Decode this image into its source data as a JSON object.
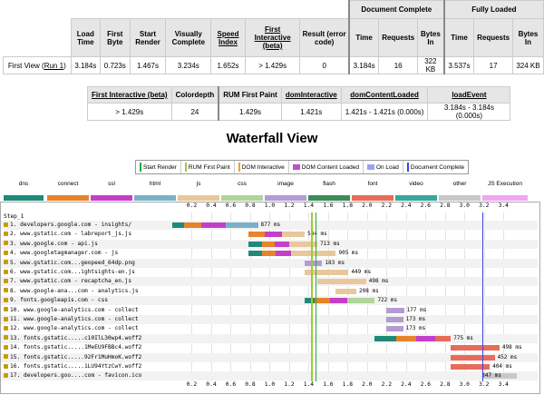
{
  "summary_table": {
    "group_headers": {
      "document_complete": "Document Complete",
      "fully_loaded": "Fully Loaded"
    },
    "headers": [
      "Load Time",
      "First Byte",
      "Start Render",
      "Visually Complete",
      "Speed Index",
      "First Interactive (beta)",
      "Result (error code)",
      "Time",
      "Requests",
      "Bytes In",
      "Time",
      "Requests",
      "Bytes In"
    ],
    "row_label": "First View (",
    "row_link": "Run 1",
    "row_label_end": ")",
    "values": [
      "3.184s",
      "0.723s",
      "1.467s",
      "3.234s",
      "1.652s",
      "> 1.429s",
      "0",
      "3.184s",
      "16",
      "322 KB",
      "3.537s",
      "17",
      "324 KB"
    ]
  },
  "metrics_table": {
    "headers": [
      "First Interactive (beta)",
      "Colordepth",
      "RUM First Paint",
      "domInteractive",
      "domContentLoaded",
      "loadEvent"
    ],
    "values": [
      "> 1.429s",
      "24",
      "1.429s",
      "1.421s",
      "1.421s - 1.421s (0.000s)",
      "3.184s - 3.184s (0.000s)"
    ]
  },
  "waterfall_title": "Waterfall View",
  "legend_lines": [
    {
      "label": "Start Render",
      "color": "#28a745"
    },
    {
      "label": "RUM First Paint",
      "color": "#9acd32"
    },
    {
      "label": "DOM Interactive",
      "color": "#f0a030"
    },
    {
      "label": "DOM Content Loaded",
      "color": "#c050d0"
    },
    {
      "label": "On Load",
      "color": "#a0a0f0"
    },
    {
      "label": "Document Complete",
      "color": "#4040e0"
    }
  ],
  "legend_types": [
    {
      "label": "dns",
      "color": "#1f8a7a"
    },
    {
      "label": "connect",
      "color": "#e8832a"
    },
    {
      "label": "ssl",
      "color": "#c43fc9"
    },
    {
      "label": "html",
      "color": "#7ab1c7"
    },
    {
      "label": "js",
      "color": "#e8c79a"
    },
    {
      "label": "css",
      "color": "#b0d49b"
    },
    {
      "label": "image",
      "color": "#b49bd4"
    },
    {
      "label": "flash",
      "color": "#3c8c5a"
    },
    {
      "label": "font",
      "color": "#e86b5a"
    },
    {
      "label": "video",
      "color": "#3aa79a"
    },
    {
      "label": "other",
      "color": "#c8c8c8"
    },
    {
      "label": "JS Execution",
      "color": "#f2a6f0"
    }
  ],
  "axis_ticks": [
    "0.2",
    "0.4",
    "0.6",
    "0.8",
    "1.0",
    "1.2",
    "1.4",
    "1.6",
    "1.8",
    "2.0",
    "2.2",
    "2.4",
    "2.6",
    "2.8",
    "3.0",
    "3.2",
    "3.4"
  ],
  "step_label": "Step_1",
  "requests": [
    {
      "label": "1. developers.google.com - insights/",
      "ms": "877 ms"
    },
    {
      "label": "2. www.gstatic.com - labreport_js.js",
      "ms": "584 ms"
    },
    {
      "label": "3. www.google.com - api.js",
      "ms": "713 ms"
    },
    {
      "label": "4. www.googletagmanager.com - js",
      "ms": "905 ms"
    },
    {
      "label": "5. www.gstatic.com...geopeed_64dp.png",
      "ms": "183 ms"
    },
    {
      "label": "6. www.gstatic.com...ightsights-en.js",
      "ms": "449 ms"
    },
    {
      "label": "7. www.gstatic.com - recaptcha_en.js",
      "ms": "498 ms"
    },
    {
      "label": "8. www.google-ana...com - analytics.js",
      "ms": "208 ms"
    },
    {
      "label": "9. fonts.googleapis.com - css",
      "ms": "722 ms"
    },
    {
      "label": "10. www.google-analytics.com - collect",
      "ms": "177 ms"
    },
    {
      "label": "11. www.google-analytics.com - collect",
      "ms": "173 ms"
    },
    {
      "label": "12. www.google-analytics.com - collect",
      "ms": "173 ms"
    },
    {
      "label": "13. fonts.gstatic.....c10IlL30wp4.woff2",
      "ms": "775 ms"
    },
    {
      "label": "14. fonts.gstatic.....1MeEU9FBBc4.woff2",
      "ms": "498 ms"
    },
    {
      "label": "15. fonts.gstatic.....92Fr1MuHmoK.woff2",
      "ms": "452 ms"
    },
    {
      "label": "16. fonts.gstatic.....1LU94YtzCwY.woff2",
      "ms": "404 ms"
    },
    {
      "label": "17. developers.goo....com - favicon.ico",
      "ms": "347 ms"
    }
  ]
}
